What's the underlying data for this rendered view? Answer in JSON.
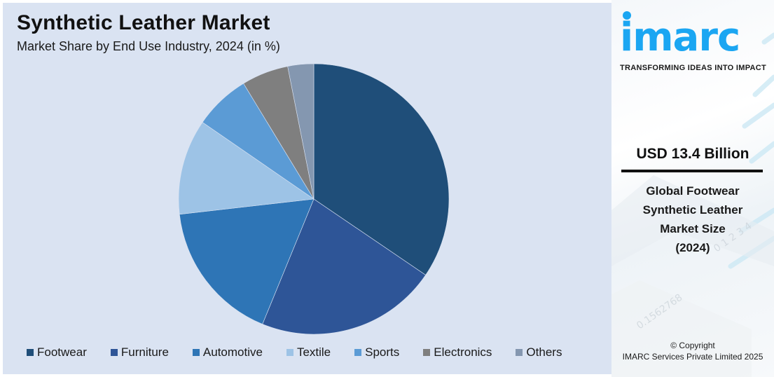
{
  "header": {
    "title": "Synthetic Leather Market",
    "subtitle": "Market Share by End Use Industry, 2024 (in %)"
  },
  "side_panel": {
    "brand": "imarc",
    "tagline": "TRANSFORMING IDEAS INTO IMPACT",
    "market_value": "USD 13.4 Billion",
    "market_desc_lines": [
      "Global Footwear",
      "Synthetic Leather",
      "Market Size",
      "(2024)"
    ],
    "copyright_line1": "© Copyright",
    "copyright_line2": "IMARC Services Private Limited 2025",
    "brand_color": "#1ba6f2"
  },
  "chart_data": {
    "type": "pie",
    "title": "Synthetic Leather Market",
    "subtitle": "Market Share by End Use Industry, 2024 (in %)",
    "categories": [
      "Footwear",
      "Furniture",
      "Automotive",
      "Textile",
      "Sports",
      "Electronics",
      "Others"
    ],
    "values": [
      34.5,
      21.7,
      17.0,
      11.4,
      6.7,
      5.6,
      3.1
    ],
    "colors": [
      "#1f4e79",
      "#2e5597",
      "#2e75b6",
      "#9dc3e6",
      "#5b9bd5",
      "#7f7f7f",
      "#8497b0"
    ],
    "start_angle_deg": 0,
    "direction": "clockwise",
    "legend_position": "bottom",
    "data_labels": false,
    "center": [
      448,
      284
    ],
    "radius": 193
  }
}
